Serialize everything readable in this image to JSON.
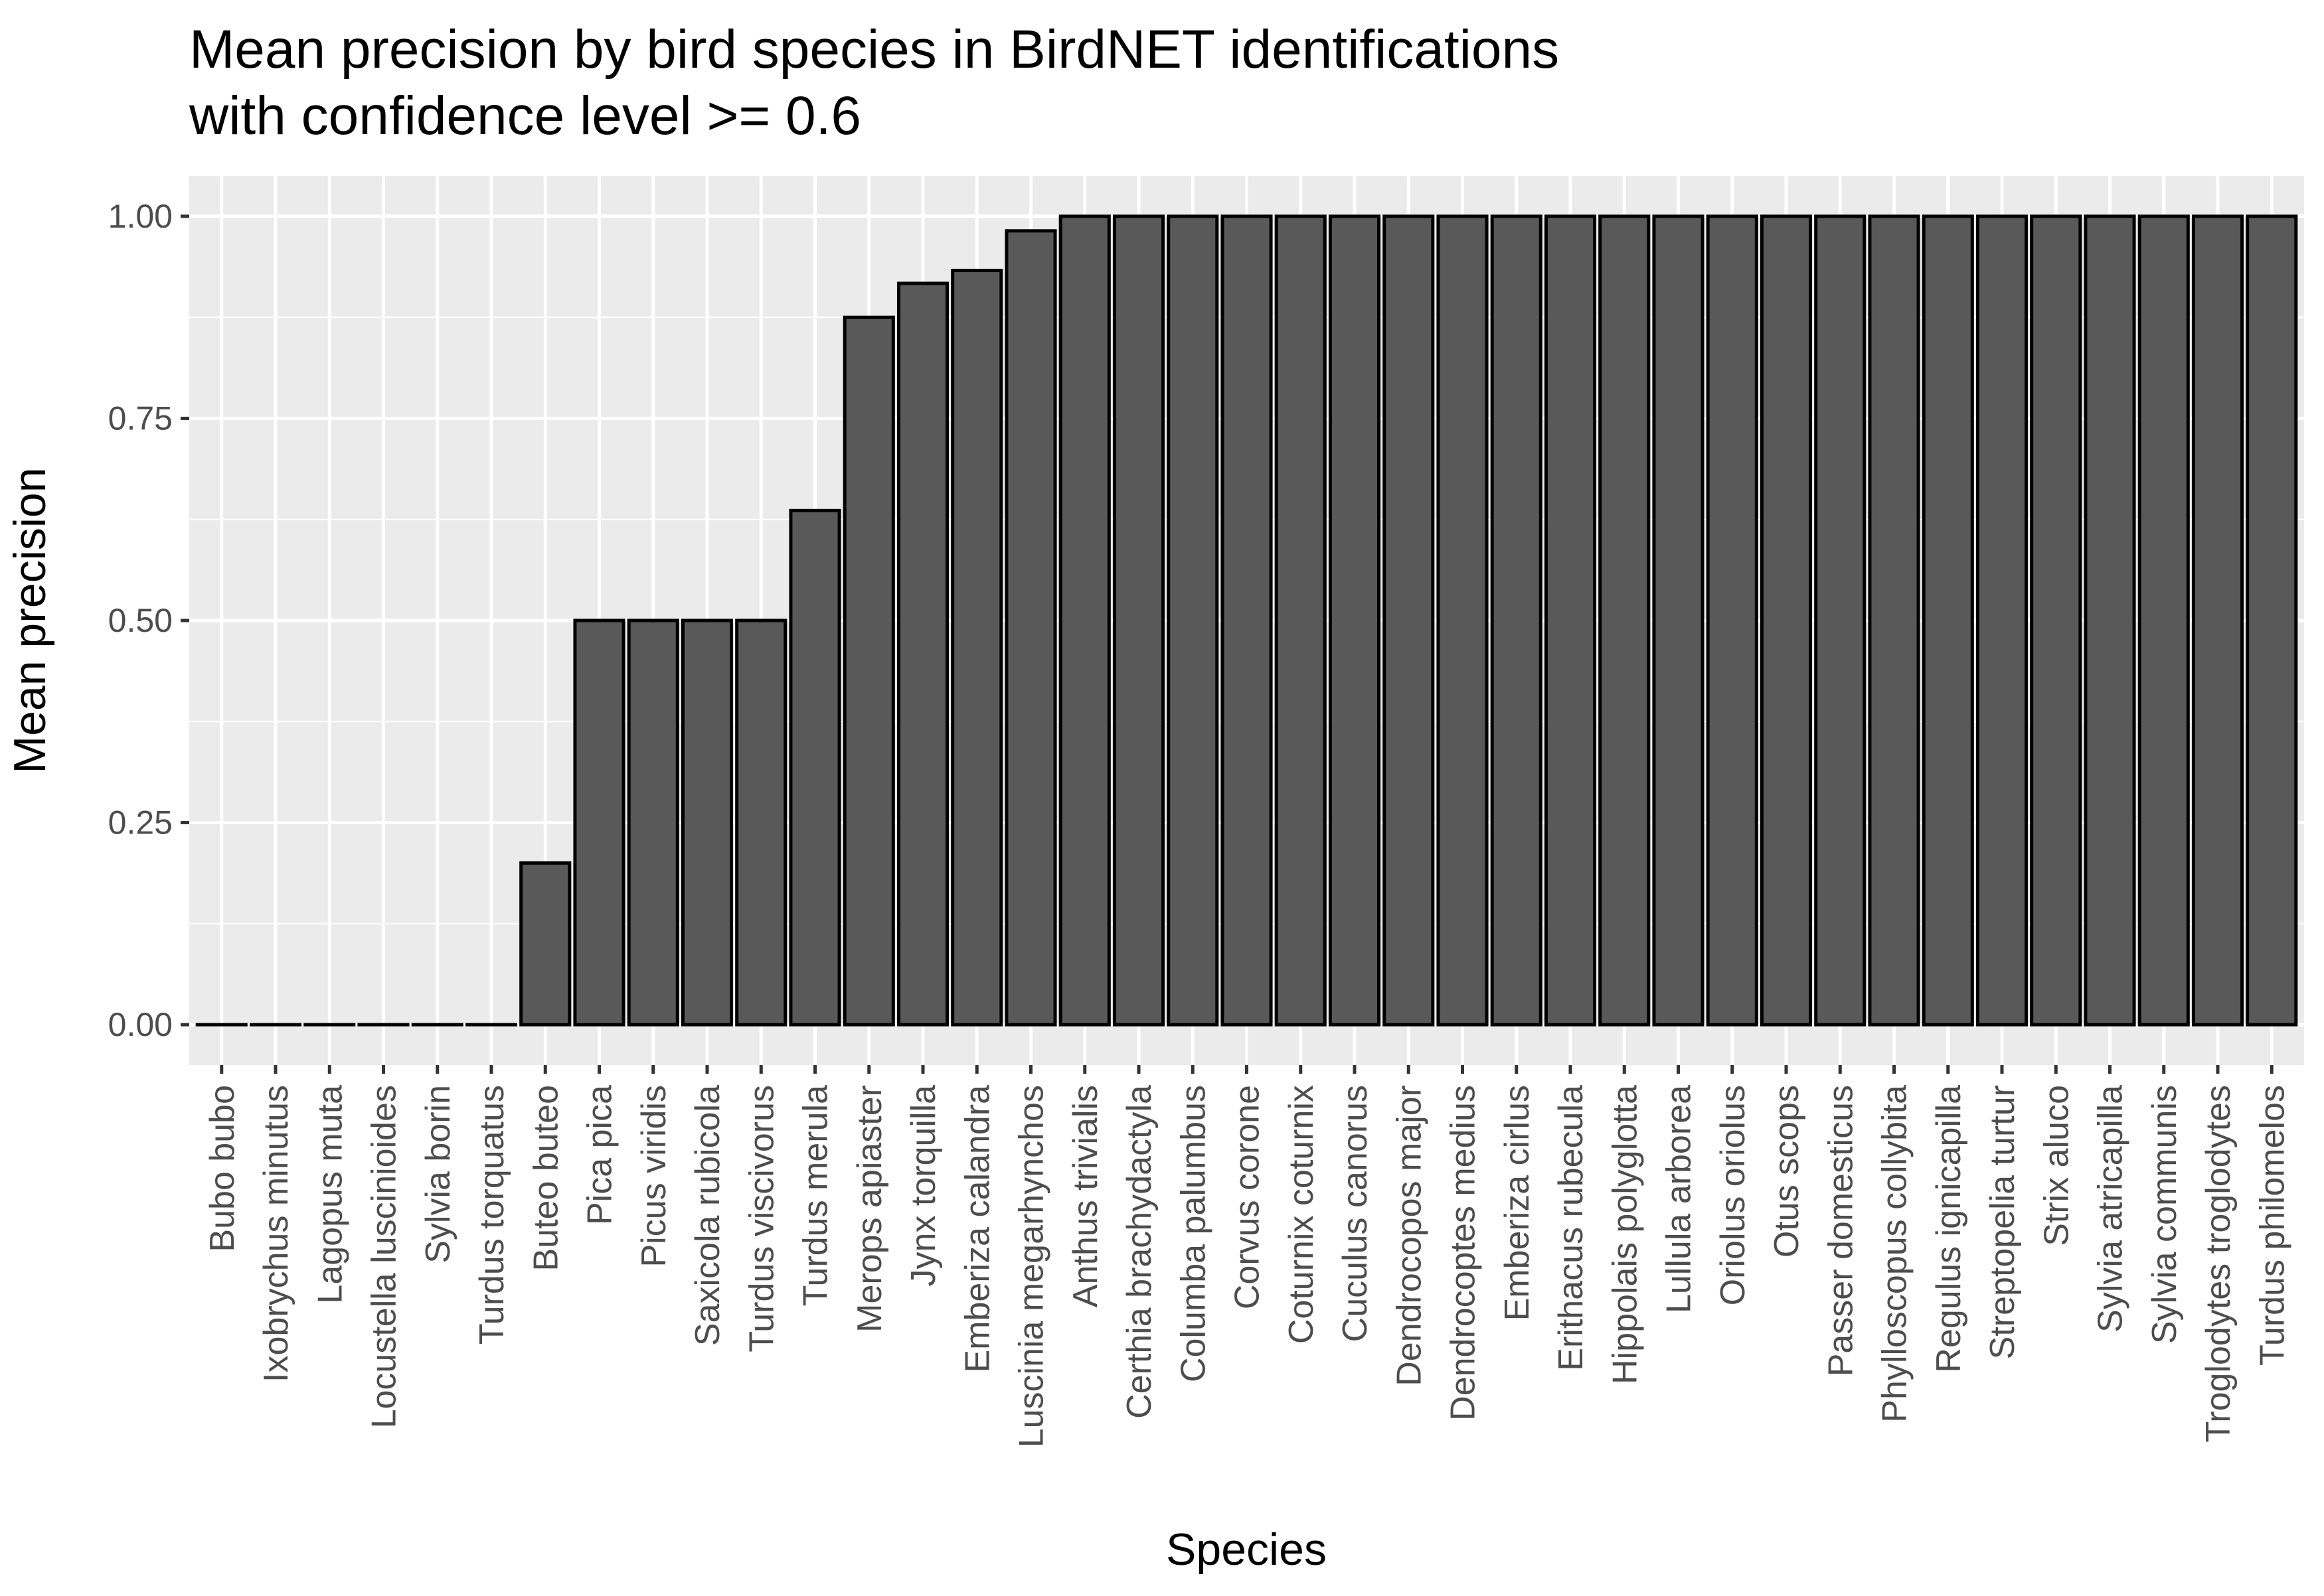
{
  "chart_data": {
    "type": "bar",
    "title_lines": [
      "Mean precision by bird species in BirdNET identifications",
      "with confidence level >= 0.6"
    ],
    "xlabel": "Species",
    "ylabel": "Mean precision",
    "ylim": [
      -0.05,
      1.05
    ],
    "yticks": [
      0,
      0.25,
      0.5,
      0.75,
      1.0
    ],
    "ytick_labels": [
      "0.00",
      "0.25",
      "0.50",
      "0.75",
      "1.00"
    ],
    "grid": true,
    "legend": "none",
    "categories": [
      "Bubo bubo",
      "Ixobrychus minutus",
      "Lagopus muta",
      "Locustella luscinioides",
      "Sylvia borin",
      "Turdus torquatus",
      "Buteo buteo",
      "Pica pica",
      "Picus viridis",
      "Saxicola rubicola",
      "Turdus viscivorus",
      "Turdus merula",
      "Merops apiaster",
      "Jynx torquilla",
      "Emberiza calandra",
      "Luscinia megarhynchos",
      "Anthus trivialis",
      "Certhia brachydactyla",
      "Columba palumbus",
      "Corvus corone",
      "Coturnix coturnix",
      "Cuculus canorus",
      "Dendrocopos major",
      "Dendrocoptes medius",
      "Emberiza cirlus",
      "Erithacus rubecula",
      "Hippolais polyglotta",
      "Lullula arborea",
      "Oriolus oriolus",
      "Otus scops",
      "Passer domesticus",
      "Phylloscopus collybita",
      "Regulus ignicapilla",
      "Streptopelia turtur",
      "Strix aluco",
      "Sylvia atricapilla",
      "Sylvia communis",
      "Troglodytes troglodytes",
      "Turdus philomelos"
    ],
    "values": [
      0,
      0,
      0,
      0,
      0,
      0,
      0.2,
      0.5,
      0.5,
      0.5,
      0.5,
      0.636,
      0.875,
      0.917,
      0.933,
      0.982,
      1,
      1,
      1,
      1,
      1,
      1,
      1,
      1,
      1,
      1,
      1,
      1,
      1,
      1,
      1,
      1,
      1,
      1,
      1,
      1,
      1,
      1,
      1
    ],
    "colors": {
      "panel_background": "#ebebeb",
      "grid": "#ffffff",
      "bar_fill": "#595959",
      "bar_stroke": "#000000",
      "tick_text": "#4d4d4d",
      "tick_mark": "#333333",
      "title_text": "#000000"
    }
  }
}
